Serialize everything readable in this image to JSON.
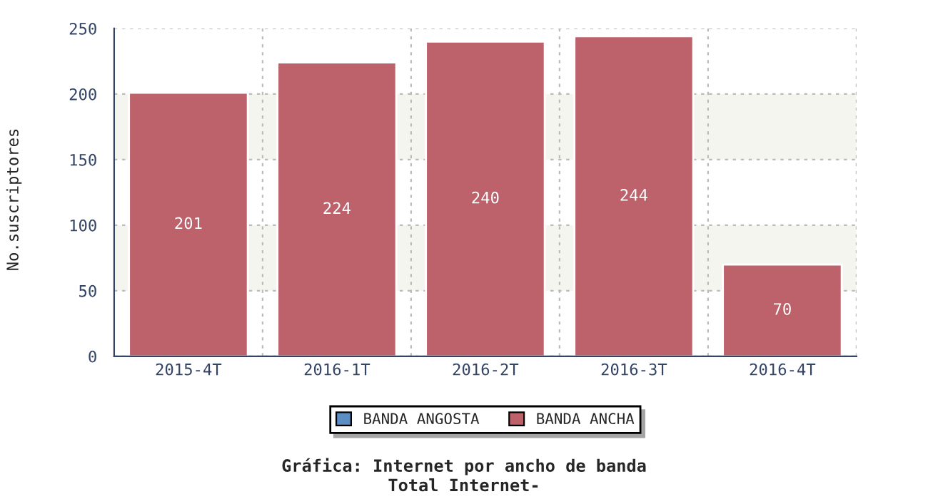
{
  "chart_data": {
    "type": "bar",
    "title": "Gráfica: Internet por ancho de banda",
    "subtitle": "Total Internet-",
    "ylabel": "No.suscriptores",
    "categories": [
      "2015-4T",
      "2016-1T",
      "2016-2T",
      "2016-3T",
      "2016-4T"
    ],
    "series": [
      {
        "name": "BANDA ANGOSTA",
        "color": "#5b8fc4",
        "values": [
          null,
          null,
          null,
          null,
          null
        ]
      },
      {
        "name": "BANDA ANCHA",
        "color": "#bd616b",
        "values": [
          201,
          224,
          240,
          244,
          70
        ],
        "value_labels": [
          "201",
          "224",
          "240",
          "244",
          "70"
        ]
      }
    ],
    "ylim": [
      0,
      250
    ],
    "yticks": [
      0,
      50,
      100,
      150,
      200,
      250
    ],
    "bands": [
      {
        "axis": "y",
        "from": 50,
        "to": 100,
        "color": "#f5f5f0"
      },
      {
        "axis": "y",
        "from": 150,
        "to": 200,
        "color": "#f5f5f0"
      }
    ],
    "grid": true,
    "legend": "bottom"
  }
}
